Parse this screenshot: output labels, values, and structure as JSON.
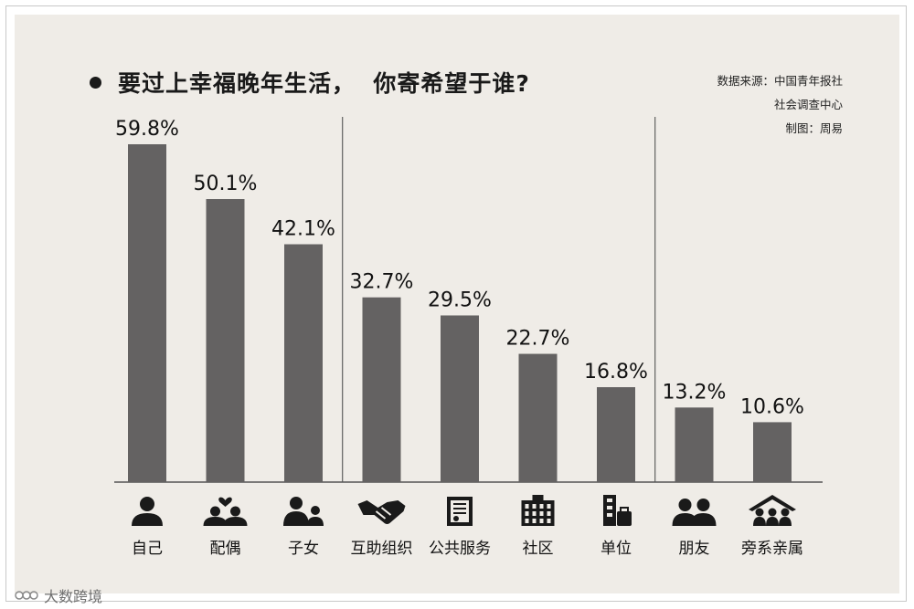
{
  "title": "要过上幸福晚年生活，  你寄希望于谁?",
  "source_lines": [
    "数据来源：中国青年报社",
    "社会调查中心",
    "制图：周易"
  ],
  "watermark": "大数跨境",
  "chart_data": {
    "type": "bar",
    "title": "要过上幸福晚年生活，  你寄希望于谁?",
    "categories": [
      "自己",
      "配偶",
      "子女",
      "互助组织",
      "公共服务",
      "社区",
      "单位",
      "朋友",
      "旁系亲属"
    ],
    "values": [
      59.8,
      50.1,
      42.1,
      32.7,
      29.5,
      22.7,
      16.8,
      13.2,
      10.6
    ],
    "value_labels": [
      "59.8%",
      "50.1%",
      "42.1%",
      "32.7%",
      "29.5%",
      "22.7%",
      "16.8%",
      "13.2%",
      "10.6%"
    ],
    "icons": [
      "person-icon",
      "couple-heart-icon",
      "parent-child-icon",
      "handshake-icon",
      "document-icon",
      "buildings-icon",
      "office-bag-icon",
      "friends-icon",
      "family-house-icon"
    ],
    "groups": [
      [
        "自己",
        "配偶",
        "子女"
      ],
      [
        "互助组织",
        "公共服务",
        "社区",
        "单位"
      ],
      [
        "朋友",
        "旁系亲属"
      ]
    ],
    "ylim": [
      0,
      65
    ],
    "grid": false,
    "bar_color": "#646262",
    "background": "#efece7"
  }
}
